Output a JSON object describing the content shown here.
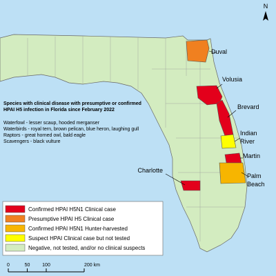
{
  "north": "N",
  "counties": [
    {
      "name": [
        "Duval"
      ],
      "color": "#f08020"
    },
    {
      "name": [
        "Volusia"
      ],
      "color": "#e3001b"
    },
    {
      "name": [
        "Brevard"
      ],
      "color": "#e3001b"
    },
    {
      "name": [
        "Indian",
        "River"
      ],
      "color": "#ffff00"
    },
    {
      "name": [
        "Martin"
      ],
      "color": "#e3001b"
    },
    {
      "name": [
        "Charlotte"
      ],
      "color": "#e3001b"
    },
    {
      "name": [
        "Palm",
        "Beach"
      ],
      "color": "#f7b500"
    }
  ],
  "info": {
    "title": [
      "Species with clinical disease with presumptive or confirmed",
      "HPAI H5 infection in Florida since February 2022"
    ],
    "species": [
      "Waterfowl - lesser scaup, hooded merganser",
      "Waterbirds - royal tern, brown pelican, blue heron, laughing gull",
      "Raptors - great horned owl, bald eagle",
      "Scavengers - black vulture"
    ]
  },
  "legend": [
    {
      "label": "Confirmed HPAI H5N1 Clinical case",
      "color": "#e3001b"
    },
    {
      "label": "Presumptive HPAI H5 Clinical case",
      "color": "#f08020"
    },
    {
      "label": "Confirmed HPAI H5N1 Hunter-harvested",
      "color": "#f7b500"
    },
    {
      "label": "Suspect HPAI Clinical case but not tested",
      "color": "#ffff00"
    },
    {
      "label": "Negative, not tested, and/or no clinical suspects",
      "color": "#d3ecc0"
    }
  ],
  "scale_bar": {
    "ticks": [
      0,
      50,
      100,
      {
        "value": 200,
        "label": "200 km"
      }
    ]
  }
}
